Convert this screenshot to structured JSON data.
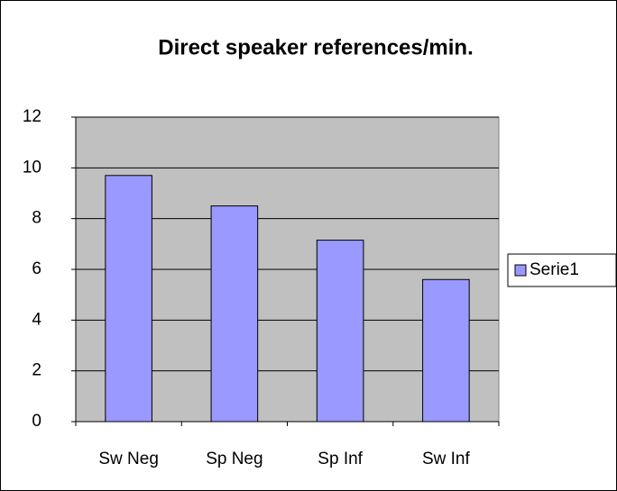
{
  "chart_data": {
    "type": "bar",
    "title": "Direct speaker references/min.",
    "categories": [
      "Sw Neg",
      "Sp Neg",
      "Sp Inf",
      "Sw Inf"
    ],
    "series": [
      {
        "name": "Serie1",
        "color": "#9999ff",
        "values": [
          9.7,
          8.5,
          7.15,
          5.6
        ]
      }
    ],
    "ylim": [
      0,
      12
    ],
    "yticks": [
      0,
      2,
      4,
      6,
      8,
      10,
      12
    ],
    "grid": true,
    "legend": "right"
  }
}
